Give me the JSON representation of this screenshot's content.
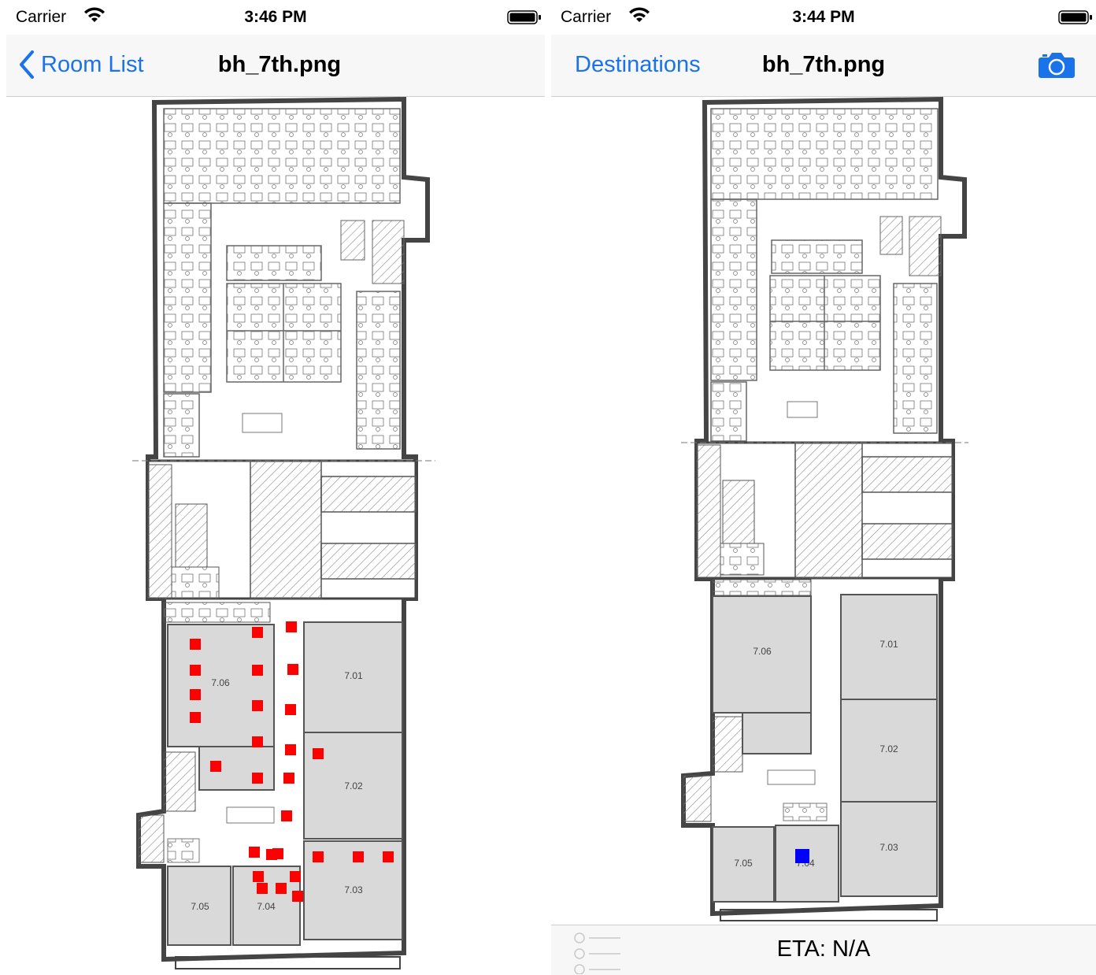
{
  "left": {
    "status": {
      "carrier": "Carrier",
      "time": "3:46 PM"
    },
    "nav": {
      "back_label": "Room List",
      "title": "bh_7th.png"
    },
    "rooms": [
      {
        "label": "7.06"
      },
      {
        "label": "7.01"
      },
      {
        "label": "7.02"
      },
      {
        "label": "7.03"
      },
      {
        "label": "7.05"
      },
      {
        "label": "7.04"
      }
    ]
  },
  "right": {
    "status": {
      "carrier": "Carrier",
      "time": "3:44 PM"
    },
    "nav": {
      "left_label": "Destinations",
      "title": "bh_7th.png"
    },
    "rooms": [
      {
        "label": "7.06"
      },
      {
        "label": "7.01"
      },
      {
        "label": "7.02"
      },
      {
        "label": "7.03"
      },
      {
        "label": "7.05"
      },
      {
        "label": "7.04"
      }
    ],
    "eta": "ETA: N/A"
  },
  "colors": {
    "accent": "#1a73e8",
    "path_marker": "#ff0000",
    "location_marker": "#0000ff",
    "room_fill": "#d9d9d9",
    "hatch": "#888888"
  },
  "icons": {
    "back": "chevron-left-icon",
    "camera": "camera-icon",
    "list": "list-icon",
    "wifi": "wifi-icon",
    "battery": "battery-icon"
  }
}
